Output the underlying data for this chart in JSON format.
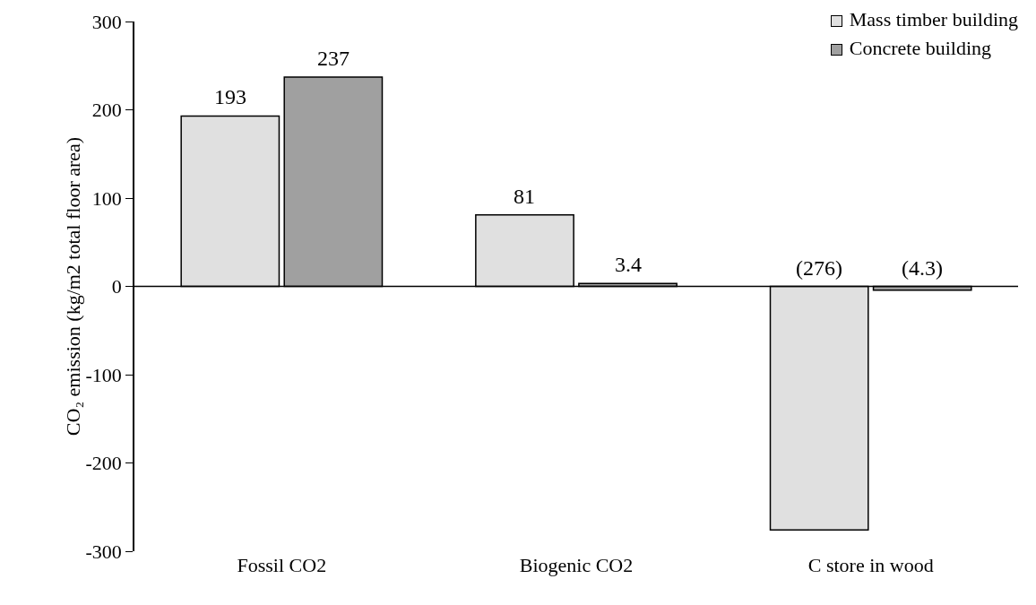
{
  "chart_data": {
    "type": "bar",
    "ylabel": "CO₂ emission (kg/m2 total floor area)",
    "categories": [
      "Fossil CO2",
      "Biogenic CO2",
      "C store in wood"
    ],
    "series": [
      {
        "name": "Mass timber building",
        "color": "#e0e0e0",
        "values": [
          193,
          81,
          -276
        ],
        "value_labels": [
          "193",
          "81",
          "(276)"
        ]
      },
      {
        "name": "Concrete building",
        "color": "#a0a0a0",
        "values": [
          237,
          3.4,
          -4.3
        ],
        "value_labels": [
          "237",
          "3.4",
          "(4.3)"
        ]
      }
    ],
    "ylim": [
      -300,
      300
    ],
    "yticks": [
      -300,
      -200,
      -100,
      0,
      100,
      200,
      300
    ],
    "legend": "top right"
  }
}
